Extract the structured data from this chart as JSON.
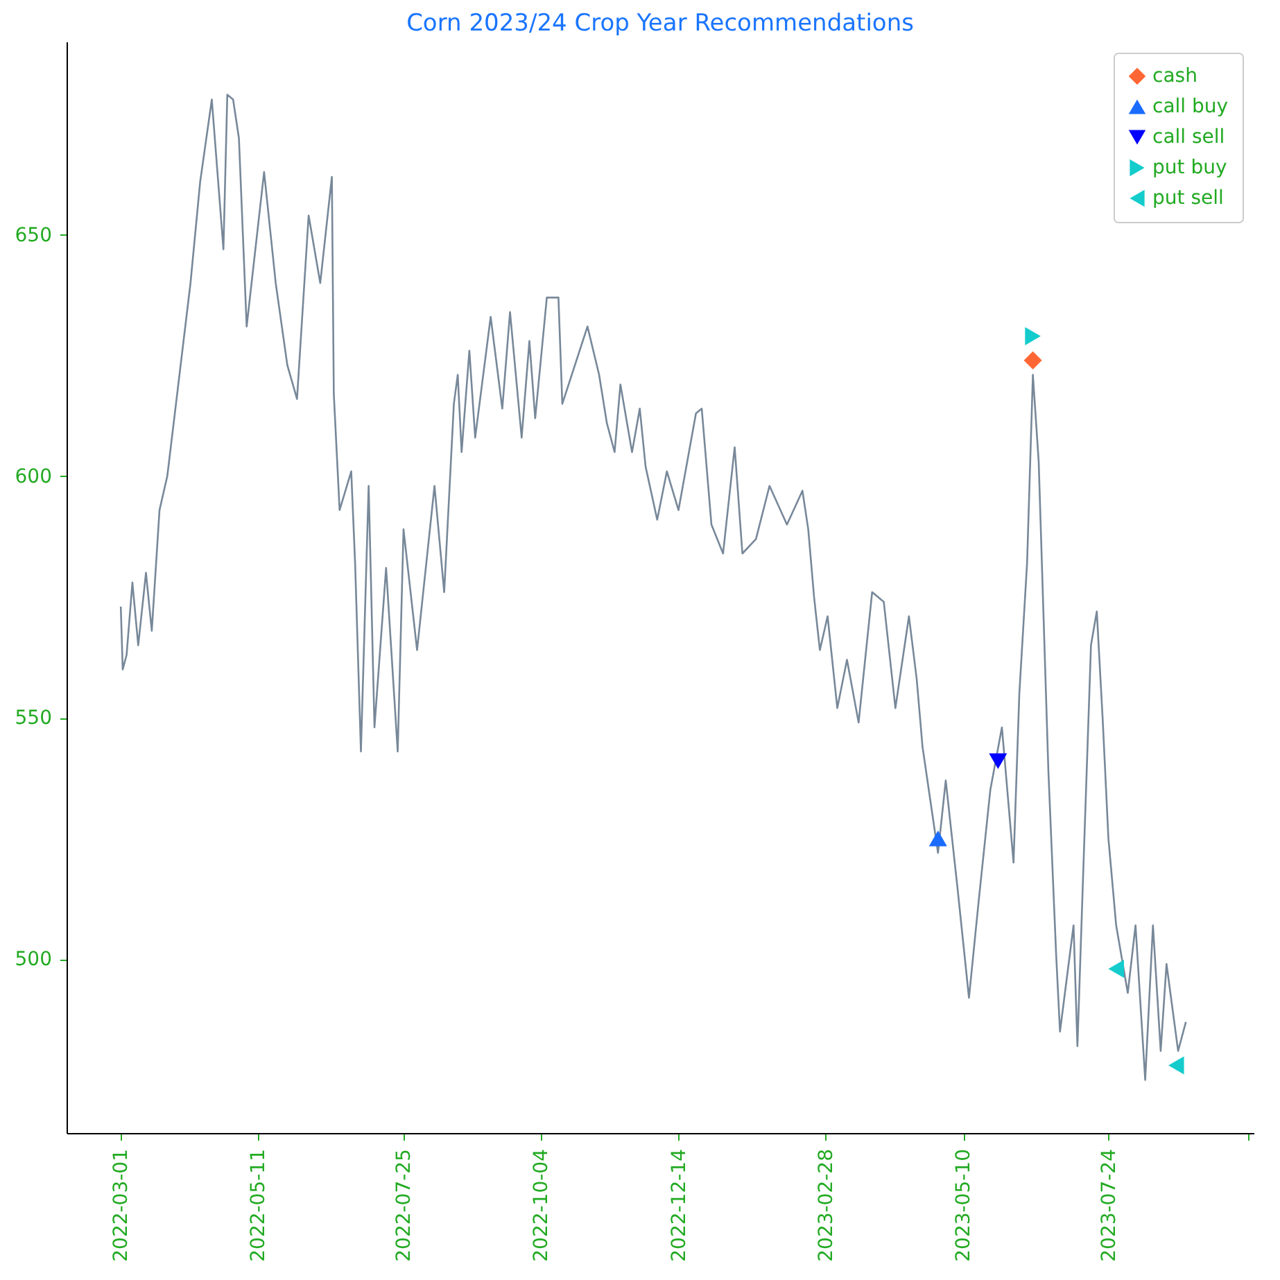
{
  "chart_data": {
    "type": "line",
    "title": "Corn 2023/24 Crop Year Recommendations",
    "xlim": [
      "2022-02-01",
      "2023-10-07"
    ],
    "xticks": [
      {
        "value": "2022-03-01",
        "label": "2022-03-01"
      },
      {
        "value": "2022-05-11",
        "label": "2022-05-11"
      },
      {
        "value": "2022-07-25",
        "label": "2022-07-25"
      },
      {
        "value": "2022-10-04",
        "label": "2022-10-04"
      },
      {
        "value": "2022-12-14",
        "label": "2022-12-14"
      },
      {
        "value": "2023-02-28",
        "label": "2023-02-28"
      },
      {
        "value": "2023-05-10",
        "label": "2023-05-10"
      },
      {
        "value": "2023-07-24",
        "label": "2023-07-24"
      },
      {
        "value": "2023-10-04",
        "label": null
      }
    ],
    "ylim": [
      464,
      690
    ],
    "yticks": [
      500,
      550,
      600,
      650
    ],
    "grid": false,
    "legend": "top right",
    "series": [
      {
        "color": "#778899",
        "marker": "none",
        "x": [
          "2022-03-01",
          "2022-03-02",
          "2022-03-04",
          "2022-03-07",
          "2022-03-10",
          "2022-03-14",
          "2022-03-17",
          "2022-03-21",
          "2022-03-25",
          "2022-03-31",
          "2022-04-06",
          "2022-04-11",
          "2022-04-17",
          "2022-04-23",
          "2022-04-25",
          "2022-04-28",
          "2022-05-01",
          "2022-05-05",
          "2022-05-14",
          "2022-05-20",
          "2022-05-26",
          "2022-05-31",
          "2022-06-06",
          "2022-06-12",
          "2022-06-18",
          "2022-06-19",
          "2022-06-22",
          "2022-06-28",
          "2022-06-30",
          "2022-07-03",
          "2022-07-07",
          "2022-07-10",
          "2022-07-16",
          "2022-07-22",
          "2022-07-25",
          "2022-08-01",
          "2022-08-10",
          "2022-08-15",
          "2022-08-20",
          "2022-08-22",
          "2022-08-24",
          "2022-08-28",
          "2022-08-31",
          "2022-09-08",
          "2022-09-14",
          "2022-09-18",
          "2022-09-24",
          "2022-09-28",
          "2022-10-01",
          "2022-10-07",
          "2022-10-13",
          "2022-10-15",
          "2022-10-28",
          "2022-11-03",
          "2022-11-07",
          "2022-11-11",
          "2022-11-14",
          "2022-11-20",
          "2022-11-24",
          "2022-11-27",
          "2022-12-03",
          "2022-12-08",
          "2022-12-14",
          "2022-12-23",
          "2022-12-26",
          "2022-12-31",
          "2023-01-06",
          "2023-01-12",
          "2023-01-16",
          "2023-01-23",
          "2023-01-30",
          "2023-02-08",
          "2023-02-16",
          "2023-02-19",
          "2023-02-22",
          "2023-02-25",
          "2023-03-01",
          "2023-03-06",
          "2023-03-11",
          "2023-03-17",
          "2023-03-24",
          "2023-03-30",
          "2023-04-05",
          "2023-04-12",
          "2023-04-16",
          "2023-04-19",
          "2023-04-23",
          "2023-04-27",
          "2023-05-01",
          "2023-05-07",
          "2023-05-13",
          "2023-05-18",
          "2023-05-24",
          "2023-05-30",
          "2023-06-05",
          "2023-06-08",
          "2023-06-12",
          "2023-06-15",
          "2023-06-18",
          "2023-06-23",
          "2023-06-27",
          "2023-06-29",
          "2023-07-06",
          "2023-07-08",
          "2023-07-11",
          "2023-07-15",
          "2023-07-18",
          "2023-07-21",
          "2023-07-24",
          "2023-07-28",
          "2023-08-03",
          "2023-08-07",
          "2023-08-12",
          "2023-08-16",
          "2023-08-20",
          "2023-08-23",
          "2023-08-29",
          "2023-09-02"
        ],
        "values": [
          573,
          560,
          563,
          578,
          565,
          580,
          568,
          593,
          600,
          620,
          640,
          661,
          678,
          647,
          679,
          678,
          670,
          631,
          663,
          640,
          623,
          616,
          654,
          640,
          662,
          617,
          593,
          601,
          582,
          543,
          598,
          548,
          581,
          543,
          589,
          564,
          598,
          576,
          615,
          621,
          605,
          626,
          608,
          633,
          614,
          634,
          608,
          628,
          612,
          637,
          637,
          615,
          631,
          621,
          611,
          605,
          619,
          605,
          614,
          602,
          591,
          601,
          593,
          613,
          614,
          590,
          584,
          606,
          584,
          587,
          598,
          590,
          597,
          589,
          575,
          564,
          571,
          552,
          562,
          549,
          576,
          574,
          552,
          571,
          558,
          544,
          533,
          522,
          537,
          515,
          492,
          512,
          535,
          548,
          520,
          555,
          582,
          621,
          603,
          539,
          501,
          485,
          507,
          482,
          518,
          565,
          572,
          550,
          525,
          507,
          493,
          507,
          475,
          507,
          481,
          499,
          481,
          487
        ]
      },
      {
        "name": "cash",
        "type": "scatter",
        "marker": "diamond",
        "color": "#ff6633",
        "x": [
          "2023-06-15"
        ],
        "values": [
          624
        ]
      },
      {
        "name": "call buy",
        "type": "scatter",
        "marker": "triangle-up",
        "color": "#1a6cff",
        "x": [
          "2023-04-27"
        ],
        "values": [
          525
        ]
      },
      {
        "name": "call sell",
        "type": "scatter",
        "marker": "triangle-down",
        "color": "#0000ff",
        "x": [
          "2023-05-28"
        ],
        "values": [
          541
        ]
      },
      {
        "name": "put buy",
        "type": "scatter",
        "marker": "triangle-right",
        "color": "#14cccc",
        "x": [
          "2023-06-15"
        ],
        "values": [
          629
        ]
      },
      {
        "name": "put sell",
        "type": "scatter",
        "marker": "triangle-left",
        "color": "#14cccc",
        "x": [
          "2023-07-28",
          "2023-08-28"
        ],
        "values": [
          498,
          478
        ]
      }
    ]
  }
}
